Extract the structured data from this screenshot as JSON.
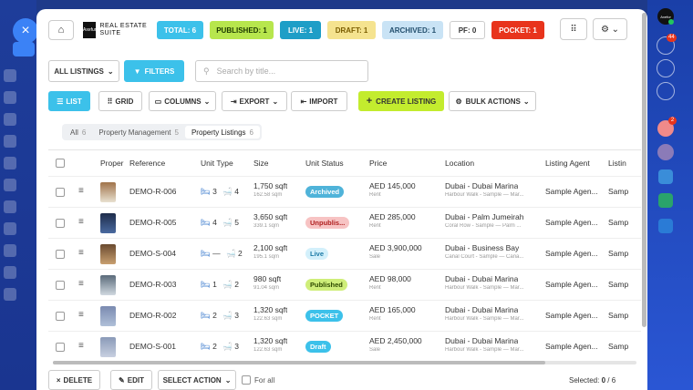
{
  "topbar": {
    "logo_small": "Axefur",
    "logo_text": "REAL ESTATE SUITE",
    "stats": [
      {
        "label": "TOTAL: 6",
        "bg": "#3cc1ea",
        "fg": "#ffffff"
      },
      {
        "label": "PUBLISHED: 1",
        "bg": "#b7e64d",
        "fg": "#1d3a00"
      },
      {
        "label": "LIVE: 1",
        "bg": "#1e9ec7",
        "fg": "#ffffff"
      },
      {
        "label": "DRAFT: 1",
        "bg": "#f5e38f",
        "fg": "#7a5c00"
      },
      {
        "label": "ARCHIVED: 1",
        "bg": "#c9e3f5",
        "fg": "#24506e"
      },
      {
        "label": "PF: 0",
        "bg": "#ffffff",
        "fg": "#333333"
      },
      {
        "label": "POCKET: 1",
        "bg": "#e8341c",
        "fg": "#ffffff"
      }
    ]
  },
  "filters": {
    "all_listings": "ALL LISTINGS",
    "filters_btn": "FILTERS",
    "search_placeholder": "Search by title..."
  },
  "toolbar": {
    "list": "LIST",
    "grid": "GRID",
    "columns": "COLUMNS",
    "export": "EXPORT",
    "import": "IMPORT",
    "create": "CREATE LISTING",
    "bulk": "BULK ACTIONS"
  },
  "tabs": [
    {
      "label": "All",
      "count": "6"
    },
    {
      "label": "Property Management",
      "count": "5"
    },
    {
      "label": "Property Listings",
      "count": "6"
    }
  ],
  "columns": [
    "Proper",
    "Reference",
    "Unit Type",
    "Size",
    "Unit Status",
    "Price",
    "Location",
    "Listing Agent",
    "Listin"
  ],
  "rows": [
    {
      "ref": "DEMO-R-006",
      "beds": "3",
      "baths": "4",
      "size": "1,750 sqft",
      "size_sub": "162.58 sqm",
      "status": "Archived",
      "status_bg": "#4fb3d9",
      "status_fg": "#ffffff",
      "price": "AED 145,000",
      "ptype": "Rent",
      "loc": "Dubai - Dubai Marina",
      "loc_sub": "Harbour Walk - Sample — Mar...",
      "agent": "Sample Agen...",
      "extra": "Samp"
    },
    {
      "ref": "DEMO-R-005",
      "beds": "4",
      "baths": "5",
      "size": "3,650 sqft",
      "size_sub": "339.1 sqm",
      "status": "Unpublis...",
      "status_bg": "#f7c3c3",
      "status_fg": "#b02020",
      "price": "AED 285,000",
      "ptype": "Rent",
      "loc": "Dubai - Palm Jumeirah",
      "loc_sub": "Coral Row - Sample — Palm ...",
      "agent": "Sample Agen...",
      "extra": "Samp"
    },
    {
      "ref": "DEMO-S-004",
      "beds": "—",
      "baths": "2",
      "size": "2,100 sqft",
      "size_sub": "195.1 sqm",
      "status": "Live",
      "status_bg": "#d3f0fb",
      "status_fg": "#1b7aa6",
      "price": "AED 3,900,000",
      "ptype": "Sale",
      "loc": "Dubai - Business Bay",
      "loc_sub": "Canal Court - Sample — Cana...",
      "agent": "Sample Agen...",
      "extra": "Samp"
    },
    {
      "ref": "DEMO-R-003",
      "beds": "1",
      "baths": "2",
      "size": "980 sqft",
      "size_sub": "91.04 sqm",
      "status": "Published",
      "status_bg": "#cfee7a",
      "status_fg": "#2f4b00",
      "price": "AED 98,000",
      "ptype": "Rent",
      "loc": "Dubai - Dubai Marina",
      "loc_sub": "Harbour Walk - Sample — Mar...",
      "agent": "Sample Agen...",
      "extra": "Samp"
    },
    {
      "ref": "DEMO-R-002",
      "beds": "2",
      "baths": "3",
      "size": "1,320 sqft",
      "size_sub": "122.63 sqm",
      "status": "POCKET",
      "status_bg": "#3cc1ea",
      "status_fg": "#ffffff",
      "price": "AED 165,000",
      "ptype": "Rent",
      "loc": "Dubai - Dubai Marina",
      "loc_sub": "Harbour Walk - Sample — Mar...",
      "agent": "Sample Agen...",
      "extra": "Samp"
    },
    {
      "ref": "DEMO-S-001",
      "beds": "2",
      "baths": "3",
      "size": "1,320 sqft",
      "size_sub": "122.63 sqm",
      "status": "Draft",
      "status_bg": "#3cc1ea",
      "status_fg": "#ffffff",
      "price": "AED 2,450,000",
      "ptype": "Sale",
      "loc": "Dubai - Dubai Marina",
      "loc_sub": "Harbour Walk - Sample — Mar...",
      "agent": "Sample Agen...",
      "extra": "Samp"
    }
  ],
  "bottom": {
    "delete": "DELETE",
    "edit": "EDIT",
    "select_action": "SELECT ACTION",
    "for_all": "For all",
    "selected": "Selected:",
    "selected_count": "0",
    "selected_total": "/ 6"
  },
  "side": {
    "notif_badge": "44",
    "red_badge": "2"
  }
}
